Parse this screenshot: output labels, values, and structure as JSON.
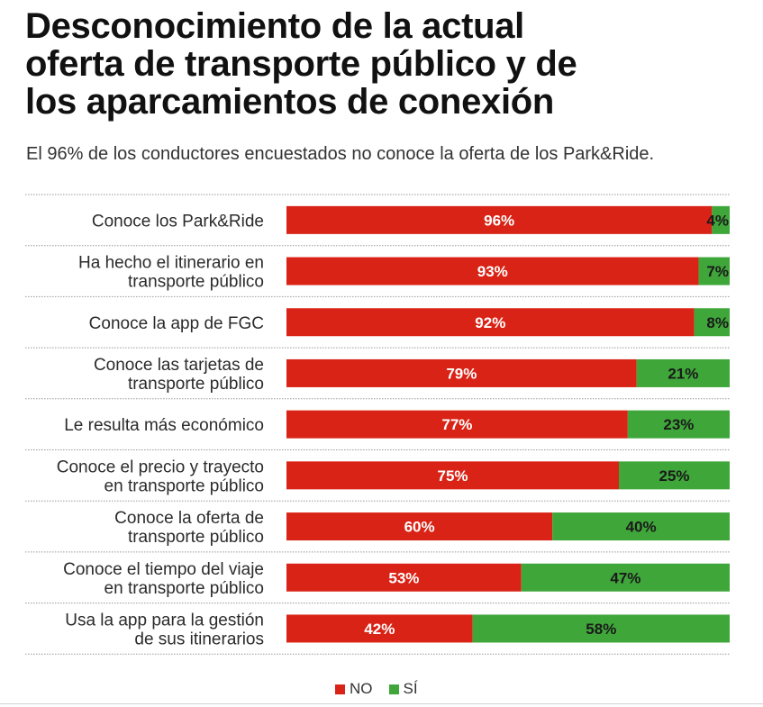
{
  "title_lines": [
    "Desconocimiento de la actual",
    "oferta de transporte público y de",
    "los aparcamientos de conexión"
  ],
  "subtitle": "El 96% de los conductores encuestados no conoce la oferta de los Park&Ride.",
  "colors": {
    "no": "#d92316",
    "si": "#3fa63a",
    "rule": "#9a9a9a"
  },
  "legend": [
    {
      "label": "NO",
      "color": "#d92316"
    },
    {
      "label": "SÍ",
      "color": "#3fa63a"
    }
  ],
  "chart_data": {
    "type": "bar",
    "orientation": "horizontal",
    "stacked": true,
    "unit": "%",
    "xlim": [
      0,
      100
    ],
    "legend_position": "bottom",
    "categories": [
      [
        "Conoce los Park&Ride"
      ],
      [
        "Ha hecho el itinerario en",
        "transporte público"
      ],
      [
        "Conoce la app de FGC"
      ],
      [
        "Conoce las tarjetas de",
        "transporte público"
      ],
      [
        "Le resulta más económico"
      ],
      [
        "Conoce el precio y trayecto",
        "en transporte público"
      ],
      [
        "Conoce la oferta de",
        "transporte público"
      ],
      [
        "Conoce el tiempo del viaje",
        "en transporte público"
      ],
      [
        "Usa la app para la gestión",
        "de sus itinerarios"
      ]
    ],
    "series": [
      {
        "name": "NO",
        "values": [
          96,
          93,
          92,
          79,
          77,
          75,
          60,
          53,
          42
        ]
      },
      {
        "name": "SÍ",
        "values": [
          4,
          7,
          8,
          21,
          23,
          25,
          40,
          47,
          58
        ]
      }
    ]
  }
}
